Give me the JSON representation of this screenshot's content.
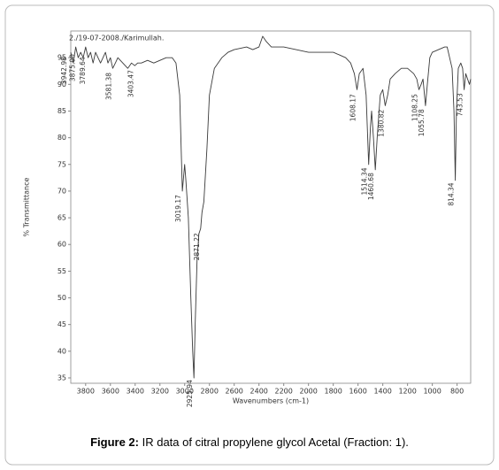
{
  "chart_data": {
    "type": "line",
    "header": "2./19-07-2008./Karimullah.",
    "xlabel": "Wavenumbers (cm-1)",
    "ylabel": "% Transmittance",
    "x": [
      3920,
      3900,
      3880,
      3860,
      3840,
      3820,
      3800,
      3780,
      3760,
      3740,
      3720,
      3700,
      3680,
      3660,
      3640,
      3620,
      3600,
      3581,
      3560,
      3540,
      3500,
      3460,
      3430,
      3403,
      3380,
      3350,
      3300,
      3250,
      3200,
      3150,
      3100,
      3070,
      3040,
      3019,
      3000,
      2990,
      2970,
      2950,
      2935,
      2925,
      2915,
      2900,
      2885,
      2871,
      2860,
      2845,
      2820,
      2800,
      2760,
      2700,
      2650,
      2600,
      2500,
      2450,
      2400,
      2370,
      2340,
      2300,
      2200,
      2100,
      2000,
      1900,
      1800,
      1750,
      1700,
      1660,
      1630,
      1608,
      1590,
      1560,
      1535,
      1514,
      1500,
      1490,
      1475,
      1460,
      1445,
      1420,
      1400,
      1380,
      1360,
      1340,
      1300,
      1250,
      1200,
      1150,
      1125,
      1108,
      1090,
      1075,
      1055,
      1040,
      1020,
      1000,
      950,
      900,
      880,
      860,
      840,
      825,
      814,
      805,
      790,
      770,
      755,
      743,
      730,
      715,
      700,
      690
    ],
    "series": [
      {
        "color": "#3a3a3a",
        "values": [
          96,
          94,
          97,
          95,
          96,
          95,
          97,
          95,
          96,
          94,
          96,
          95,
          94,
          95,
          96,
          94,
          95,
          93,
          94,
          95,
          94,
          93,
          94,
          93.5,
          94,
          94,
          94.5,
          94,
          94.5,
          95,
          95,
          94,
          88,
          70,
          75,
          72,
          65,
          50,
          40,
          35,
          45,
          57,
          62,
          63,
          66,
          68,
          78,
          88,
          93,
          95,
          96,
          96.5,
          97,
          96.5,
          97,
          99,
          98,
          97,
          97,
          96.5,
          96,
          96,
          96,
          95.5,
          95,
          94,
          92,
          89,
          92,
          93,
          88,
          75,
          82,
          85,
          80,
          74,
          80,
          88,
          89,
          86,
          88,
          91,
          92,
          93,
          93,
          92,
          91,
          89,
          90,
          91,
          86,
          90,
          95,
          96,
          96.5,
          97,
          97,
          95,
          93,
          85,
          72,
          85,
          93,
          94,
          93,
          89,
          92,
          91,
          90,
          91
        ]
      }
    ],
    "annotations": [
      3942.98,
      {
        "value": 3875,
        "label": "3875.00"
      },
      3789.64,
      3581.38,
      3403.47,
      3019.17,
      2925.94,
      2871.22,
      1608.17,
      1514.34,
      1460.68,
      1380.82,
      1108.25,
      1055.78,
      814.34,
      743.53
    ],
    "xlim": [
      3920,
      690
    ],
    "xticks": [
      3800,
      3600,
      3400,
      3200,
      3000,
      2800,
      2600,
      2400,
      2200,
      2000,
      1800,
      1600,
      1400,
      1200,
      1000,
      800
    ],
    "ylim": [
      34,
      100
    ],
    "yticks": [
      35,
      40,
      45,
      50,
      55,
      60,
      65,
      70,
      75,
      80,
      85,
      90,
      95
    ]
  },
  "figure": {
    "label": "Figure 2:",
    "text": "IR data of citral propylene glycol Acetal (Fraction: 1)."
  }
}
